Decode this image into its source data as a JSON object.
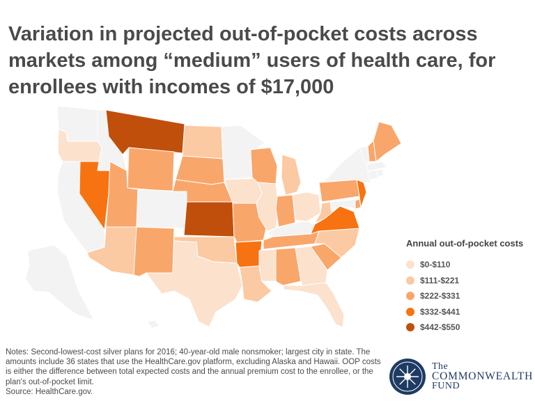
{
  "title": "Variation in projected out-of-pocket costs across markets among “medium” users of health care, for enrollees with incomes of $17,000",
  "legend": {
    "title": "Annual out-of-pocket costs",
    "items": [
      {
        "label": "$0-$110",
        "color": "#fce1cd"
      },
      {
        "label": "$111-$221",
        "color": "#fbc9a2"
      },
      {
        "label": "$222-$331",
        "color": "#f9a66b"
      },
      {
        "label": "$332-$441",
        "color": "#f77312"
      },
      {
        "label": "$442-$550",
        "color": "#c04f0c"
      }
    ]
  },
  "no_data_color": "#f3f3f3",
  "map_data": {
    "states": [
      {
        "id": "WA",
        "tier": null
      },
      {
        "id": "OR",
        "tier": 0
      },
      {
        "id": "CA",
        "tier": null
      },
      {
        "id": "NV",
        "tier": 3
      },
      {
        "id": "ID",
        "tier": null
      },
      {
        "id": "MT",
        "tier": 4
      },
      {
        "id": "WY",
        "tier": 2
      },
      {
        "id": "UT",
        "tier": 2
      },
      {
        "id": "AZ",
        "tier": 1
      },
      {
        "id": "CO",
        "tier": null
      },
      {
        "id": "NM",
        "tier": 2
      },
      {
        "id": "ND",
        "tier": 1
      },
      {
        "id": "SD",
        "tier": 2
      },
      {
        "id": "NE",
        "tier": 2
      },
      {
        "id": "KS",
        "tier": 4
      },
      {
        "id": "OK",
        "tier": 1
      },
      {
        "id": "TX",
        "tier": 0
      },
      {
        "id": "MN",
        "tier": null
      },
      {
        "id": "IA",
        "tier": 0
      },
      {
        "id": "MO",
        "tier": 2
      },
      {
        "id": "AR",
        "tier": 3
      },
      {
        "id": "LA",
        "tier": 1
      },
      {
        "id": "WI",
        "tier": 2
      },
      {
        "id": "IL",
        "tier": 0
      },
      {
        "id": "MI",
        "tier": 1
      },
      {
        "id": "IN",
        "tier": 2
      },
      {
        "id": "OH",
        "tier": 0
      },
      {
        "id": "KY",
        "tier": null
      },
      {
        "id": "TN",
        "tier": 2
      },
      {
        "id": "MS",
        "tier": 0
      },
      {
        "id": "AL",
        "tier": 2
      },
      {
        "id": "GA",
        "tier": 0
      },
      {
        "id": "FL",
        "tier": 0
      },
      {
        "id": "SC",
        "tier": 2
      },
      {
        "id": "NC",
        "tier": 1
      },
      {
        "id": "VA",
        "tier": 3
      },
      {
        "id": "WV",
        "tier": 1
      },
      {
        "id": "PA",
        "tier": 2
      },
      {
        "id": "NY",
        "tier": null
      },
      {
        "id": "NJ",
        "tier": 3
      },
      {
        "id": "DE",
        "tier": 2
      },
      {
        "id": "MD",
        "tier": null
      },
      {
        "id": "VT",
        "tier": null
      },
      {
        "id": "NH",
        "tier": 2
      },
      {
        "id": "ME",
        "tier": 2
      },
      {
        "id": "MA",
        "tier": null
      },
      {
        "id": "CT",
        "tier": null
      },
      {
        "id": "RI",
        "tier": null
      },
      {
        "id": "AK",
        "tier": null
      },
      {
        "id": "HI",
        "tier": null
      }
    ]
  },
  "notes": "Notes: Second-lowest-cost silver plans for 2016; 40-year-old male nonsmoker; largest city in state. The amounts include 36 states that use the HealthCare.gov platform, excluding Alaska and Hawaii. OOP costs is either the difference between total expected costs and the annual premium cost to the enrollee, or the plan's out-of-pocket limit.",
  "source": "Source: HealthCare.gov.",
  "logo": {
    "line1": "The",
    "line2": "COMMONWEALTH",
    "line3": "FUND",
    "color": "#1f3b63"
  }
}
